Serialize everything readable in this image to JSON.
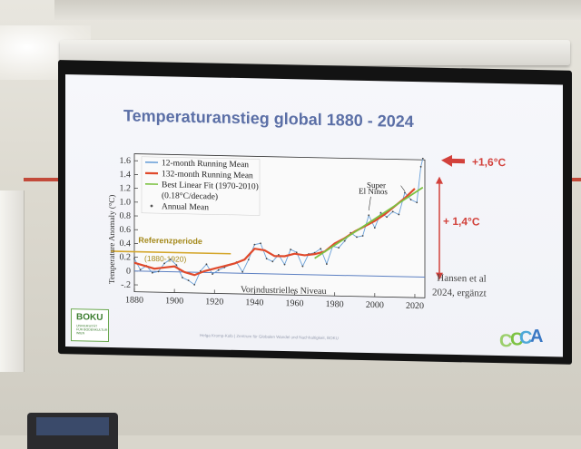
{
  "slide": {
    "title": "Temperaturanstieg global 1880 - 2024",
    "annot_top": "+1,6°C",
    "annot_mid": "+ 1,4°C",
    "source_line1": "Hansen et al",
    "source_line2": "2024, ergänzt",
    "footer": "Helga Kromp-Kolb | Zentrum für Globalen Wandel und Nachhaltigkeit, BOKU",
    "logo_left_name": "BOKU",
    "logo_left_sub1": "UNIVERSITÄT",
    "logo_left_sub2": "FÜR BODENKULTUR",
    "logo_left_sub3": "WIEN",
    "logo_right_letters": [
      "C",
      "C",
      "C",
      "A"
    ],
    "accent_color": "#5b6fa6",
    "annot_color": "#d2413b"
  },
  "chart_data": {
    "type": "line",
    "ylabel": "Temperature Anomaly (°C)",
    "x_ticks": [
      "1880",
      "1900",
      "1920",
      "1940",
      "1960",
      "1980",
      "2000",
      "2020"
    ],
    "y_ticks": [
      "1.6",
      "1.4",
      "1.2",
      "1.0",
      "0.8",
      "0.6",
      "0.4",
      "0.2",
      "0",
      "-.2"
    ],
    "xlim": [
      1880,
      2025
    ],
    "ylim": [
      -0.3,
      1.7
    ],
    "legend": [
      {
        "label": "12-month Running Mean",
        "color": "#6aa0d8"
      },
      {
        "label": "132-month Running Mean",
        "color": "#e04a2c"
      },
      {
        "label": "Best Linear Fit (1970-2010)",
        "color": "#7cc242"
      },
      {
        "label": "(0.18°C/decade)",
        "color": ""
      },
      {
        "label": "Annual Mean",
        "color": "#555555"
      }
    ],
    "legend_position": "top-left",
    "referenz_label": "Referenzperiode",
    "referenz_sub": "(1880-1920)",
    "niveau_label": "Vorindustrielles Niveau",
    "superninos_line1": "Super",
    "superninos_line2": "El Ninos",
    "series": [
      {
        "name": "132-month Running Mean",
        "color": "#e04a2c",
        "x": [
          1880,
          1885,
          1890,
          1895,
          1900,
          1905,
          1910,
          1915,
          1920,
          1925,
          1930,
          1935,
          1940,
          1945,
          1950,
          1955,
          1960,
          1965,
          1970,
          1975,
          1980,
          1985,
          1990,
          1995,
          2000,
          2005,
          2010,
          2015,
          2020
        ],
        "values": [
          0.12,
          0.08,
          0.04,
          0.06,
          0.08,
          0.0,
          -0.04,
          0.02,
          0.06,
          0.1,
          0.14,
          0.2,
          0.36,
          0.34,
          0.26,
          0.26,
          0.3,
          0.28,
          0.3,
          0.34,
          0.46,
          0.54,
          0.64,
          0.72,
          0.8,
          0.9,
          1.02,
          1.14,
          1.28
        ]
      },
      {
        "name": "12-month Running Mean",
        "color": "#6aa0d8",
        "x": [
          1880,
          1883,
          1886,
          1889,
          1892,
          1895,
          1898,
          1901,
          1904,
          1907,
          1910,
          1913,
          1916,
          1919,
          1922,
          1925,
          1928,
          1931,
          1934,
          1937,
          1940,
          1943,
          1946,
          1949,
          1952,
          1955,
          1958,
          1961,
          1964,
          1967,
          1970,
          1973,
          1976,
          1979,
          1982,
          1985,
          1988,
          1991,
          1994,
          1997,
          2000,
          2003,
          2006,
          2009,
          2012,
          2015,
          2018,
          2021,
          2023,
          2024
        ],
        "values": [
          0.18,
          0.02,
          0.08,
          -0.02,
          0.0,
          0.12,
          0.18,
          0.1,
          -0.08,
          -0.12,
          -0.18,
          0.02,
          0.12,
          -0.02,
          0.04,
          0.08,
          0.12,
          0.16,
          0.02,
          0.2,
          0.42,
          0.44,
          0.22,
          0.18,
          0.28,
          0.14,
          0.36,
          0.32,
          0.12,
          0.3,
          0.32,
          0.38,
          0.16,
          0.42,
          0.4,
          0.5,
          0.62,
          0.56,
          0.58,
          0.88,
          0.7,
          0.92,
          0.86,
          0.94,
          0.9,
          1.22,
          1.12,
          1.08,
          1.6,
          1.72
        ]
      },
      {
        "name": "Best Linear Fit (1970-2010)",
        "color": "#7cc242",
        "x": [
          1970,
          2024
        ],
        "values": [
          0.24,
          1.3
        ]
      }
    ],
    "referenz_segment": {
      "x": [
        1880,
        1920
      ],
      "value": 0.28,
      "color": "#d4a62a"
    },
    "niveau_line": {
      "value": 0.0,
      "color": "#5b7fc2"
    }
  }
}
